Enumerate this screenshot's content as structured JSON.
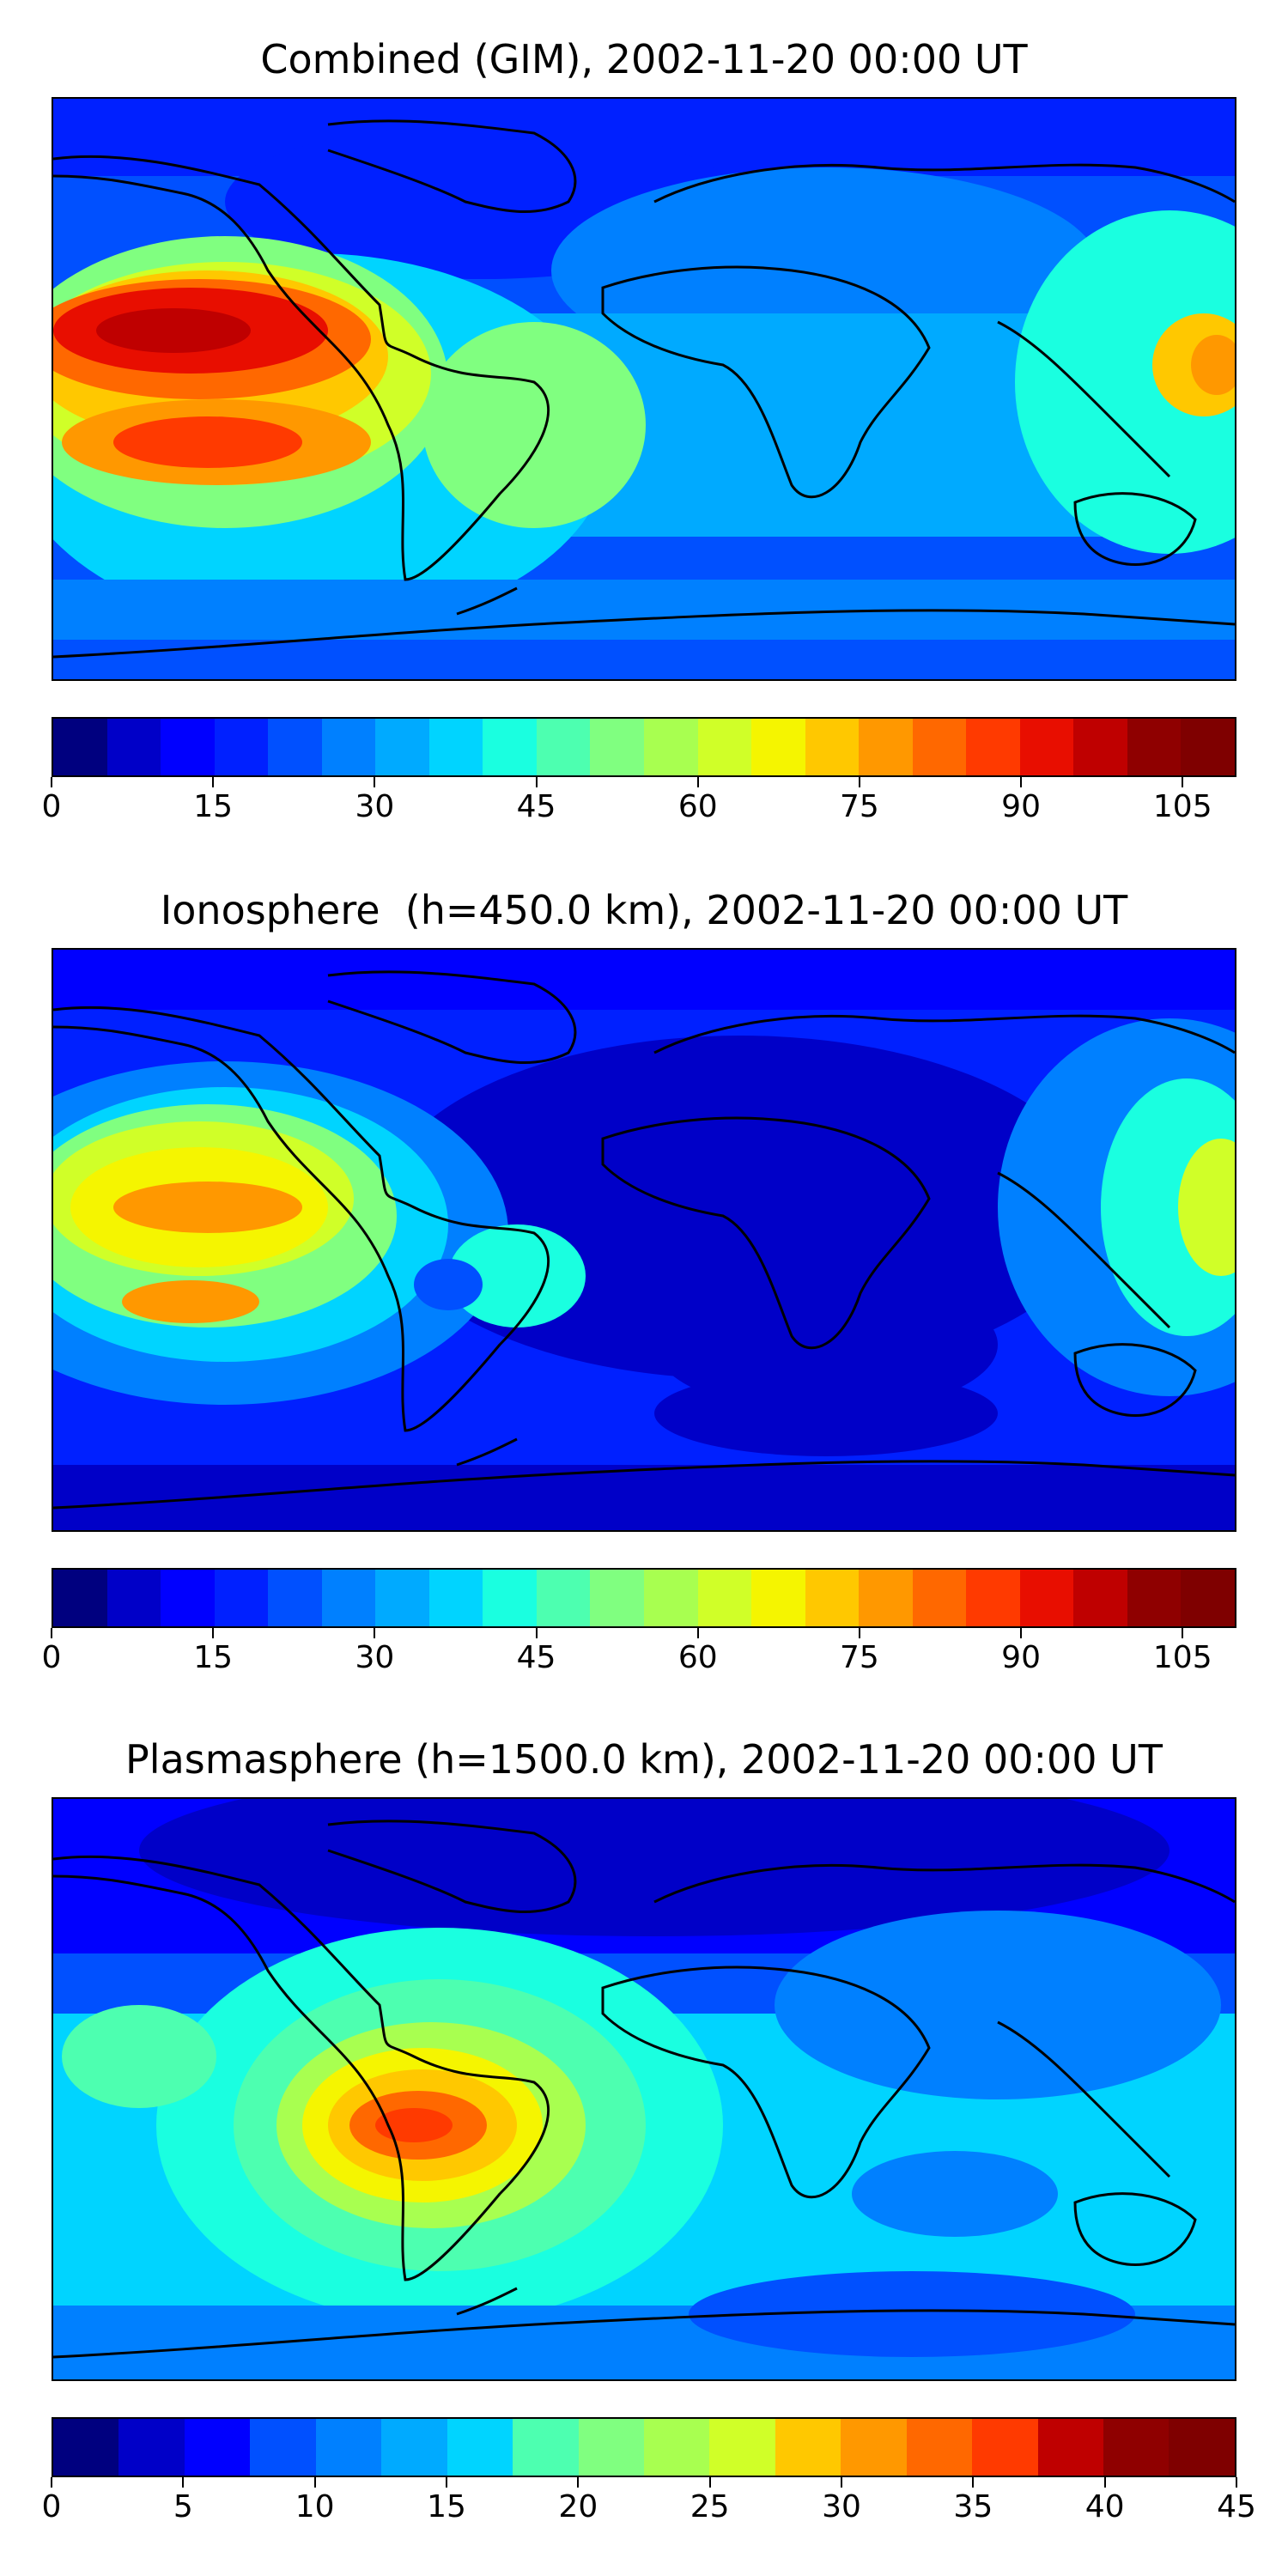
{
  "panels": [
    {
      "title": "Combined (GIM), 2002-11-20 00:00 UT",
      "colorbar": {
        "ticks": [
          "0",
          "15",
          "30",
          "45",
          "60",
          "75",
          "90",
          "105"
        ],
        "min": 0,
        "max": 110,
        "levels": 22
      }
    },
    {
      "title": "Ionosphere  (h=450.0 km), 2002-11-20 00:00 UT",
      "colorbar": {
        "ticks": [
          "0",
          "15",
          "30",
          "45",
          "60",
          "75",
          "90",
          "105"
        ],
        "min": 0,
        "max": 110,
        "levels": 22
      }
    },
    {
      "title": "Plasmasphere (h=1500.0 km), 2002-11-20 00:00 UT",
      "colorbar": {
        "ticks": [
          "0",
          "5",
          "10",
          "15",
          "20",
          "25",
          "30",
          "35",
          "40",
          "45"
        ],
        "min": 0,
        "max": 45,
        "levels": 18
      }
    }
  ],
  "colors": {
    "jet": [
      "#00007f",
      "#0000c8",
      "#0000ff",
      "#0020ff",
      "#0050ff",
      "#0080ff",
      "#00aaff",
      "#00d4ff",
      "#1affe0",
      "#4dffb0",
      "#80ff80",
      "#a8ff50",
      "#d0ff28",
      "#f5f500",
      "#ffc800",
      "#ff9800",
      "#ff6800",
      "#ff3a00",
      "#e80e00",
      "#bf0000",
      "#8f0000",
      "#7f0000"
    ],
    "coastline": "#000000"
  }
}
